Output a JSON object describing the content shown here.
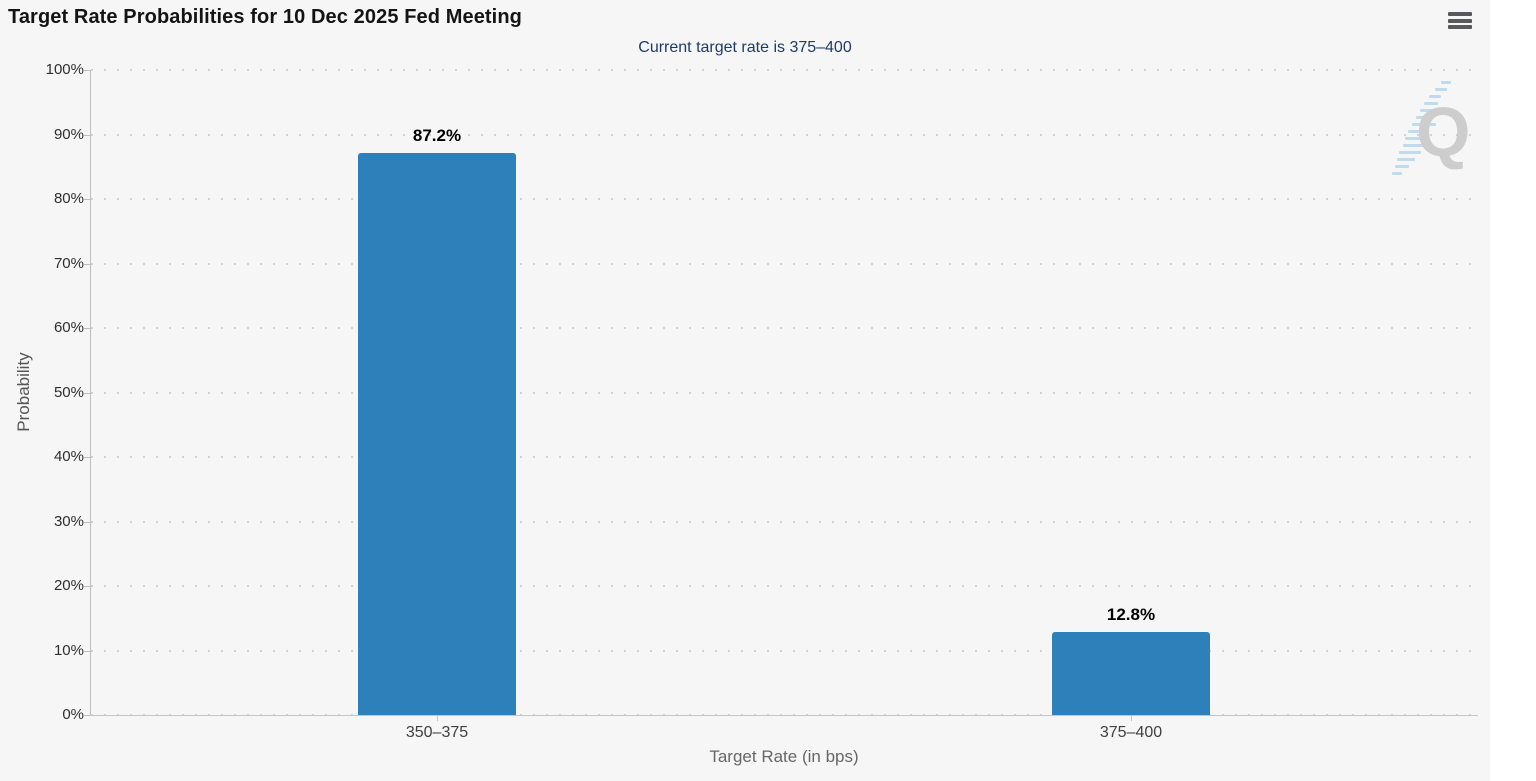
{
  "header": {
    "title": "Target Rate Probabilities for 10 Dec 2025 Fed Meeting",
    "subtitle": "Current target rate is 375–400",
    "menu_icon": "hamburger-menu-icon"
  },
  "chart_data": {
    "type": "bar",
    "title": "Target Rate Probabilities for 10 Dec 2025 Fed Meeting",
    "subtitle": "Current target rate is 375–400",
    "categories": [
      "350–375",
      "375–400"
    ],
    "values": [
      87.2,
      12.8
    ],
    "value_labels": [
      "87.2%",
      "12.8%"
    ],
    "xlabel": "Target Rate (in bps)",
    "ylabel": "Probability",
    "ylim": [
      0,
      100
    ],
    "ytick_step": 10,
    "ytick_suffix": "%",
    "grid": "dotted horizontal",
    "legend": "none"
  },
  "colors": {
    "bar": "#2d80ba",
    "subtitle_text": "#1f3a68",
    "title_text": "#141414",
    "axis_text": "#2e2e2e",
    "axis_title_text": "#666666",
    "grid_dot": "#d2d2d2",
    "background": "#f6f6f7",
    "watermark_gray": "#c7c7c7",
    "watermark_blue": "#aed4ec"
  },
  "watermark": {
    "letter": "Q",
    "name": "quikstrike-logo"
  }
}
